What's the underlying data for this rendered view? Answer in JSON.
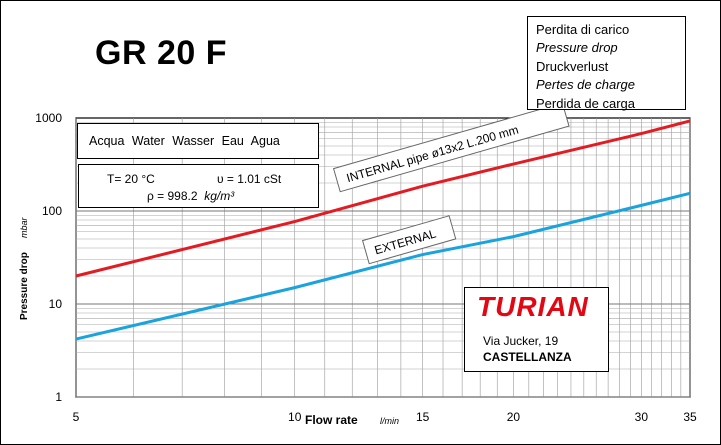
{
  "header": {
    "title": "GR 20 F"
  },
  "legend_box": {
    "lines": [
      "Perdita di carico",
      "Pressure drop",
      "Druckverlust",
      "Pertes de charge",
      "Perdida de carga"
    ]
  },
  "fluid_box": {
    "text": "Acqua  Water  Wasser  Eau  Agua"
  },
  "conditions_box": {
    "temperature": "T= 20 °C",
    "viscosity": "υ = 1.01  cSt",
    "density_value": "ρ = 998.2",
    "density_unit": "kg/m³"
  },
  "company": {
    "name": "TURIAN",
    "address": "Via Jucker, 19",
    "city": "CASTELLANZA"
  },
  "colors": {
    "internal": "#e31c23",
    "external": "#1aa3dd",
    "logo": "#e30613"
  },
  "chart_data": {
    "type": "line",
    "xlabel": "Flow rate",
    "xunit": "l/min",
    "ylabel": "Pressure drop",
    "yunit": "mbar",
    "xscale": "log",
    "yscale": "log",
    "xlim": [
      5,
      35
    ],
    "ylim": [
      1,
      1000
    ],
    "x_ticks": [
      5,
      10,
      15,
      20,
      30,
      35
    ],
    "y_ticks": [
      1,
      10,
      100,
      1000
    ],
    "grid": true,
    "series": [
      {
        "name": "INTERNAL pipe ø13x2 L.200 mm",
        "x": [
          5,
          10,
          15,
          20,
          30,
          35
        ],
        "values": [
          20,
          77,
          185,
          320,
          680,
          930
        ]
      },
      {
        "name": "EXTERNAL",
        "x": [
          5,
          10,
          15,
          20,
          30,
          35
        ],
        "values": [
          4.2,
          15,
          34,
          53,
          115,
          155
        ]
      }
    ]
  }
}
